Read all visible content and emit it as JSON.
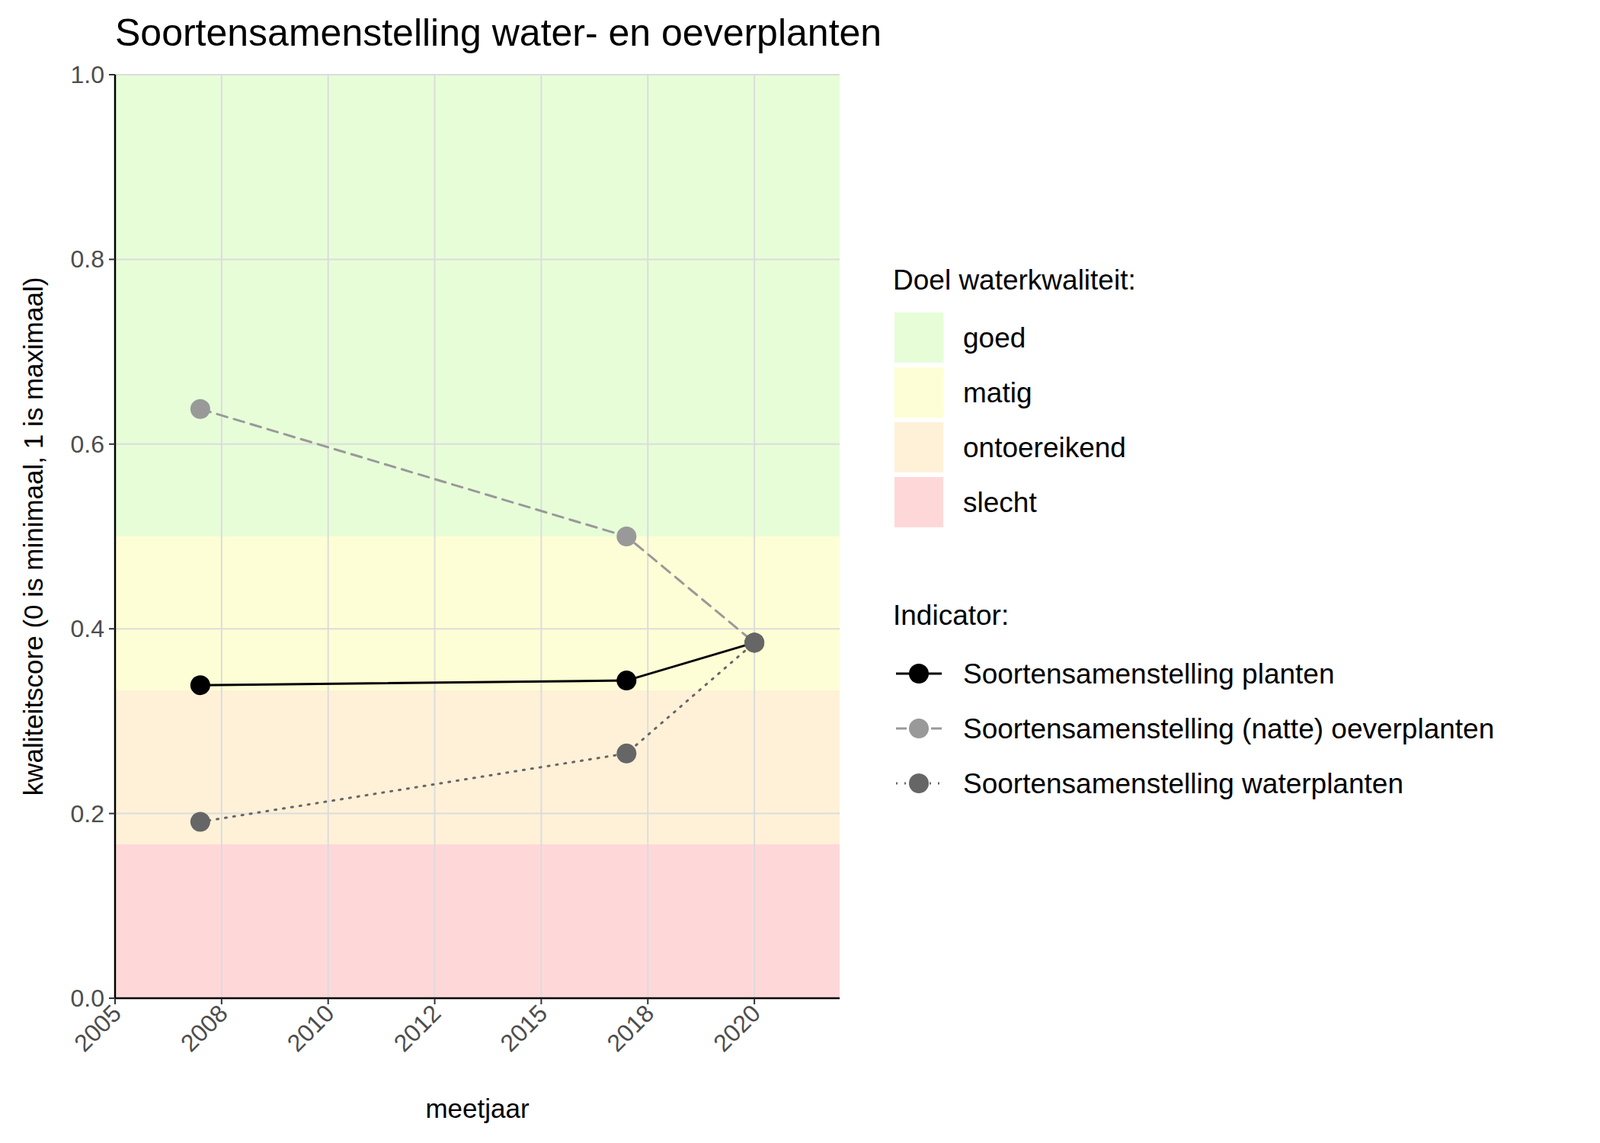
{
  "chart_data": {
    "type": "line",
    "title": "Soortensamenstelling water- en oeverplanten",
    "x_label": "meetjaar",
    "y_label": "kwaliteitscore (0 is minimaal, 1 is maximaal)",
    "x": [
      2007,
      2017,
      2020
    ],
    "xlim": [
      2005,
      2022
    ],
    "xticks": [
      2005,
      {
        "value": 2007.5,
        "label": "2008"
      },
      2010,
      {
        "value": 2012.5,
        "label": "2012"
      },
      2015,
      {
        "value": 2017.5,
        "label": "2018"
      },
      2020
    ],
    "ylim": [
      0,
      1
    ],
    "yticks": [
      {
        "value": 0,
        "label": "0.0"
      },
      0.2,
      0.4,
      0.6,
      0.8,
      {
        "value": 1,
        "label": "1.0"
      }
    ],
    "grid": true,
    "legend": "right",
    "band_legend_title": "Doel waterkwaliteit:",
    "bands": [
      {
        "name": "goed",
        "color": "#e7fdd8",
        "range": [
          0.5,
          1
        ]
      },
      {
        "name": "matig",
        "color": "#fefed6",
        "range": [
          0.3333,
          0.5
        ]
      },
      {
        "name": "ontoereikend",
        "color": "#fef1d8",
        "range": [
          0.1667,
          0.3333
        ]
      },
      {
        "name": "slecht",
        "color": "#fed8d9",
        "range": [
          0,
          0.1667
        ]
      }
    ],
    "series_legend_title": "Indicator:",
    "series": [
      {
        "name": "Soortensamenstelling planten",
        "color": "#000000",
        "line_style": "solid",
        "marker": "circle",
        "values": [
          0.339,
          0.344,
          0.385
        ]
      },
      {
        "name": "Soortensamenstelling (natte) oeverplanten",
        "color": "#999999",
        "line_style": "dashed",
        "marker": "circle",
        "values": [
          0.638,
          0.5,
          0.385
        ]
      },
      {
        "name": "Soortensamenstelling waterplanten",
        "color": "#666666",
        "line_style": "dotted",
        "marker": "circle",
        "values": [
          0.191,
          0.265,
          0.385
        ]
      }
    ]
  }
}
